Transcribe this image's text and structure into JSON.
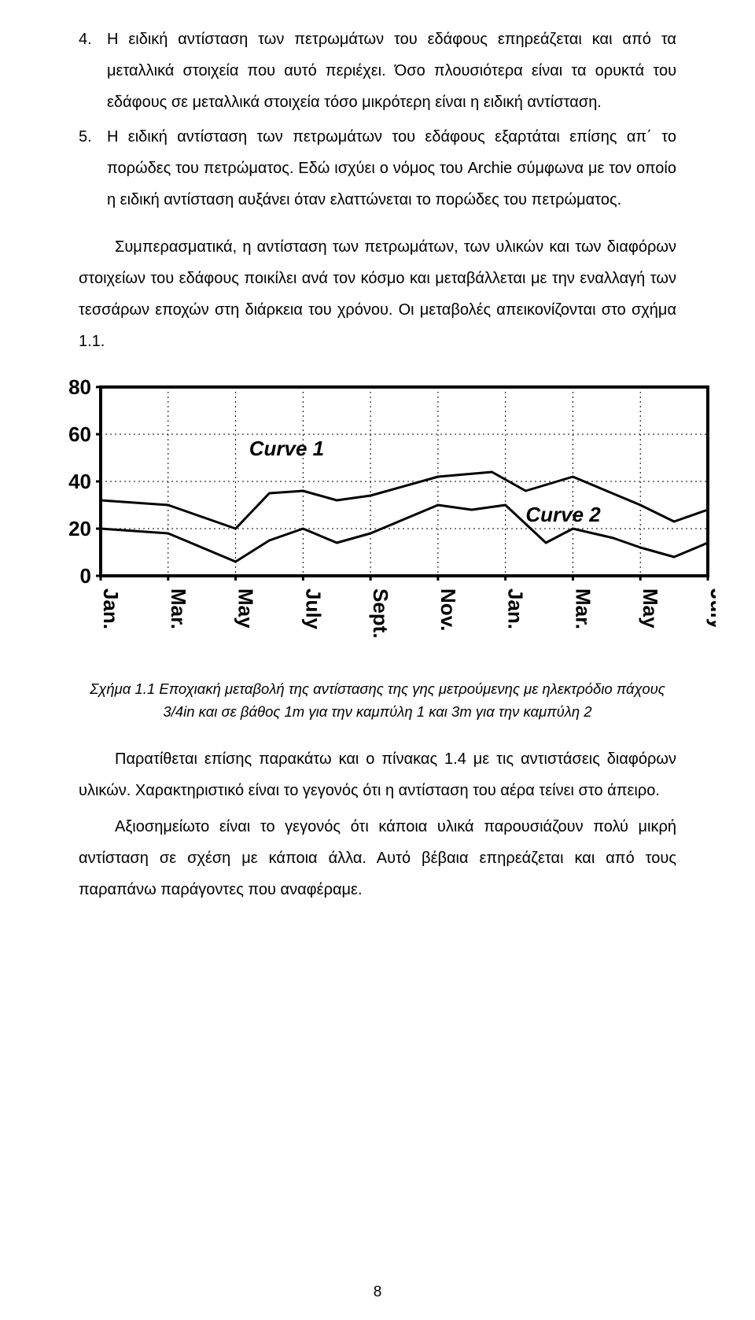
{
  "list": {
    "item4": {
      "num": "4.",
      "text": "Η  ειδική αντίσταση των πετρωμάτων του εδάφους επηρεάζεται  και  από τα  μεταλλικά   στοιχεία που αυτό   περιέχει. Όσο πλουσιότερα είναι τα ορυκτά  του εδάφους σε μεταλλικά στοιχεία τόσο μικρότερη είναι η ειδική αντίσταση."
    },
    "item5": {
      "num": "5.",
      "text": "Η ειδική αντίσταση των πετρωμάτων του εδάφους εξαρτάται επίσης απ΄ το πορώδες του πετρώματος. Εδώ ισχύει ο νόμος του Archie σύμφωνα με τον οποίο η ειδική αντίσταση αυξάνει όταν ελαττώνεται το πορώδες του πετρώματος."
    }
  },
  "para1": "Συμπερασματικά,  η  αντίσταση  των  πετρωμάτων,  των  υλικών  και  των διαφόρων  στοιχείων του εδάφους  ποικίλει ανά τον κόσμο και μεταβάλλεται   με την εναλλαγή  των  τεσσάρων    εποχών    στη  διάρκεια  του    χρόνου.    Οι  μεταβολές απεικονίζονται στο σχήμα 1.1.",
  "caption": "Σχήμα 1.1 Εποχιακή μεταβολή της αντίστασης της γης μετρούμενης με ηλεκτρόδιο πάχους 3/4in και σε βάθος 1m για την καμπύλη 1 και 3m για την καμπύλη 2",
  "para2": "Παρατίθεται  επίσης  παρακάτω  και  ο  πίνακας  1.4  με  τις  αντιστάσεις διαφόρων υλικών. Χαρακτηριστικό είναι το  γεγονός ότι η αντίσταση του  αέρα τείνει στο άπειρο.",
  "para3": "Αξιοσημείωτο είναι το γεγονός ότι κάποια  υλικά παρουσιάζουν πολύ μικρή αντίσταση  σε    σχέση  με  κάποια  άλλα.  Αυτό  βέβαια  επηρεάζεται  και  από  τους παραπάνω παράγοντες που αναφέραμε.",
  "page_number": "8",
  "chart": {
    "type": "line",
    "background_color": "#ffffff",
    "axis_color": "#000000",
    "grid_color": "#000000",
    "line_color": "#000000",
    "line_width": 3,
    "text_color": "#000000",
    "ytick_labels": [
      "0",
      "20",
      "40",
      "60",
      "80"
    ],
    "ytick_values": [
      0,
      20,
      40,
      60,
      80
    ],
    "ylim": [
      0,
      80
    ],
    "xtick_labels": [
      "Jan.",
      "Mar.",
      "May",
      "July",
      "Sept.",
      "Nov.",
      "Jan.",
      "Mar.",
      "May",
      "July"
    ],
    "series": [
      {
        "label": "Curve 1",
        "label_pos_idx": 2.2,
        "label_y": 51,
        "points": [
          [
            0,
            32
          ],
          [
            1,
            30
          ],
          [
            2,
            20
          ],
          [
            2.5,
            35
          ],
          [
            3,
            36
          ],
          [
            3.5,
            32
          ],
          [
            4,
            34
          ],
          [
            5,
            42
          ],
          [
            5.8,
            44
          ],
          [
            6.3,
            36
          ],
          [
            7,
            42
          ],
          [
            8,
            30
          ],
          [
            8.5,
            23
          ],
          [
            9,
            28
          ]
        ]
      },
      {
        "label": "Curve 2",
        "label_pos_idx": 6.3,
        "label_y": 23,
        "points": [
          [
            0,
            20
          ],
          [
            1,
            18
          ],
          [
            2,
            6
          ],
          [
            2.5,
            15
          ],
          [
            3,
            20
          ],
          [
            3.5,
            14
          ],
          [
            4,
            18
          ],
          [
            5,
            30
          ],
          [
            5.5,
            28
          ],
          [
            6,
            30
          ],
          [
            6.6,
            14
          ],
          [
            7,
            20
          ],
          [
            7.6,
            16
          ],
          [
            8,
            12
          ],
          [
            8.5,
            8
          ],
          [
            9,
            14
          ]
        ]
      }
    ],
    "label_fontsize": 26,
    "tick_fontsize": 26
  }
}
